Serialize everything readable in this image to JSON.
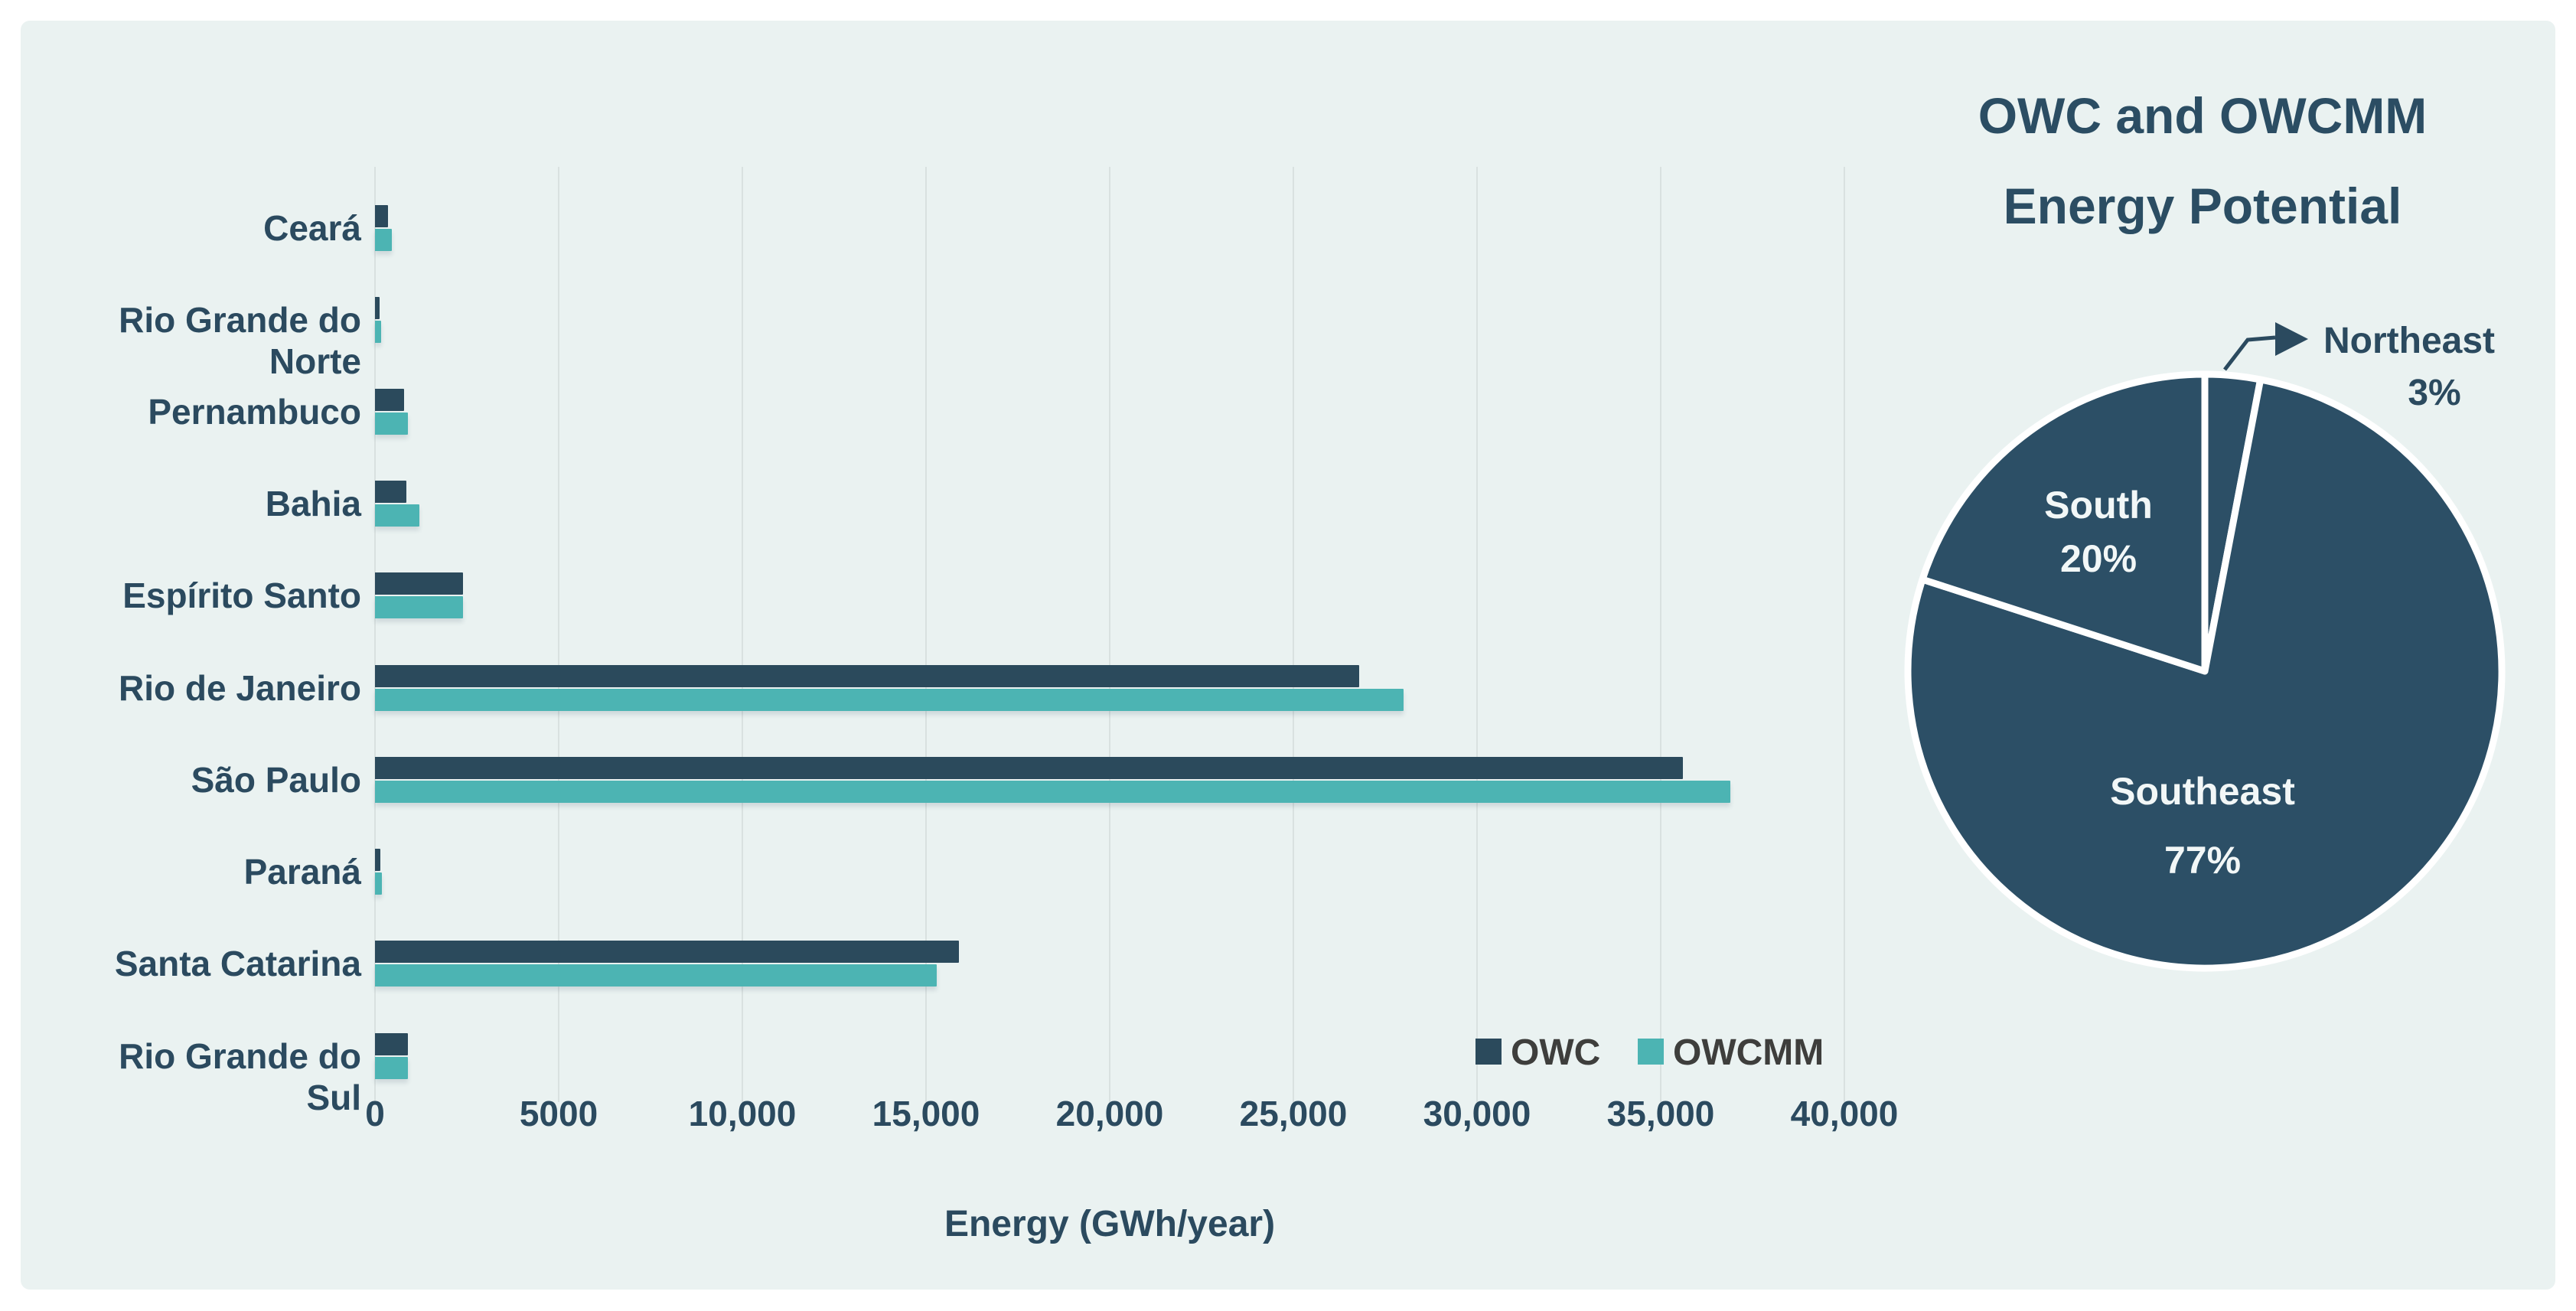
{
  "figure": {
    "page_background": "#ffffff",
    "panel_background": "#eaf2f1",
    "text_color": "#2b4a5f",
    "legend_text_color": "#3e3e3c"
  },
  "chart_data": [
    {
      "type": "bar",
      "orientation": "horizontal",
      "xlabel": "Energy (GWh/year)",
      "xlim": [
        0,
        40000
      ],
      "xtick_values": [
        0,
        5000,
        10000,
        15000,
        20000,
        25000,
        30000,
        35000,
        40000
      ],
      "xtick_labels": [
        "0",
        "5000",
        "10,000",
        "15,000",
        "20,000",
        "25,000",
        "30,000",
        "35,000",
        "40,000"
      ],
      "grid": "vertical",
      "legend_position": "bottom-right",
      "categories": [
        "Ceará",
        "Rio Grande do Norte",
        "Pernambuco",
        "Bahia",
        "Espírito Santo",
        "Rio de Janeiro",
        "São Paulo",
        "Paraná",
        "Santa Catarina",
        "Rio Grande do Sul"
      ],
      "series": [
        {
          "name": "OWC",
          "color": "#2b4a5c",
          "values": [
            350,
            130,
            800,
            850,
            2400,
            26800,
            35600,
            150,
            15900,
            900
          ]
        },
        {
          "name": "OWCMM",
          "color": "#4cb4b3",
          "values": [
            450,
            160,
            900,
            1200,
            2400,
            28000,
            36900,
            190,
            15300,
            900
          ]
        }
      ]
    },
    {
      "type": "pie",
      "title": "OWC and OWCMM Energy Potential",
      "title_lines": [
        "OWC and OWCMM",
        "Energy Potential"
      ],
      "slice_color": "#2c4f66",
      "separator_color": "#ffffff",
      "slices": [
        {
          "label": "Northeast",
          "pct": 3,
          "label_style": "callout"
        },
        {
          "label": "Southeast",
          "pct": 77,
          "label_style": "inside"
        },
        {
          "label": "South",
          "pct": 20,
          "label_style": "inside"
        }
      ]
    }
  ]
}
